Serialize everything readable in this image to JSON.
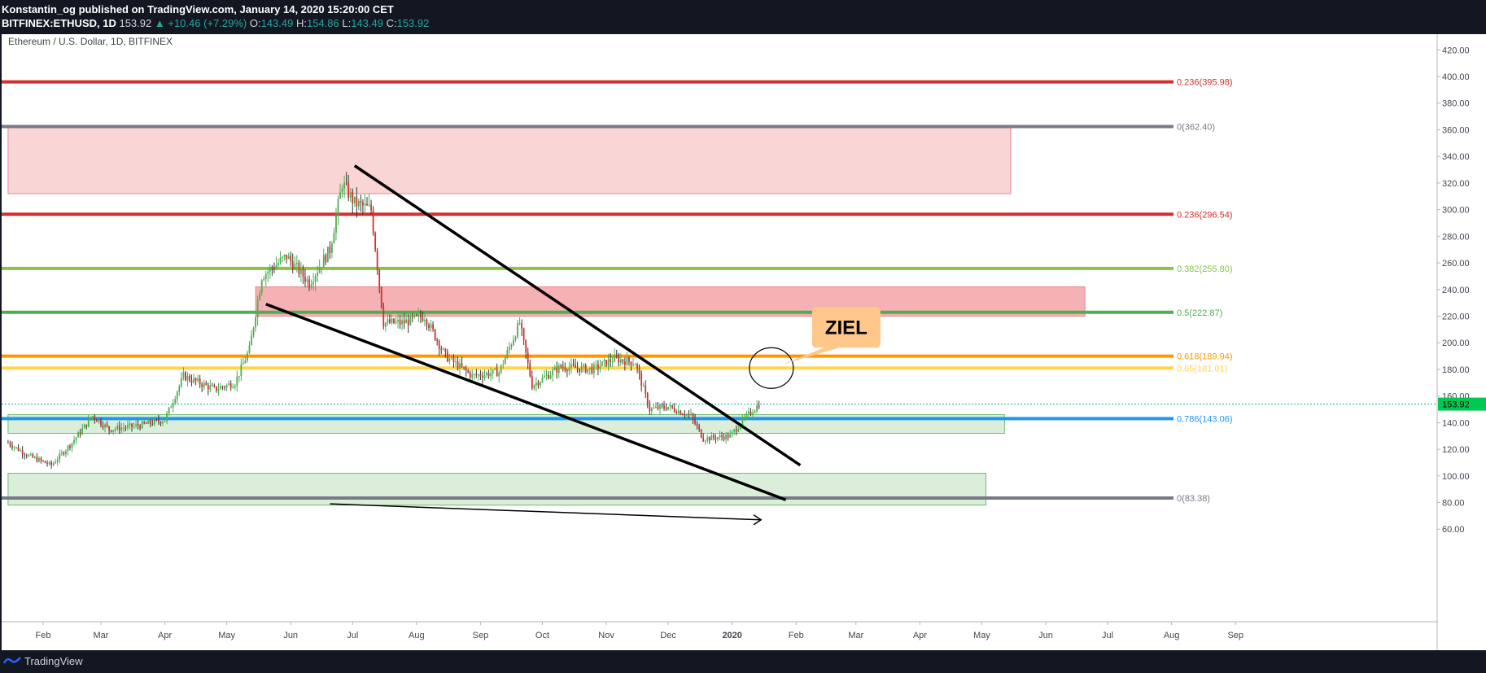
{
  "header": {
    "publisher_line": "Konstantin_og published on TradingView.com, January 14, 2020 15:20:00 CET",
    "symbol": "BITFINEX:ETHUSD, 1D",
    "price": "153.92",
    "change": "+10.46 (+7.29%)",
    "o_label": "O:",
    "o_value": "143.49",
    "h_label": "H:",
    "h_value": "154.86",
    "l_label": "L:",
    "l_value": "143.49",
    "c_label": "C:",
    "c_value": "153.92"
  },
  "footer": {
    "brand": "TradingView"
  },
  "chart_data": {
    "type": "candlestick",
    "title": "Ethereum / U.S. Dollar, 1D, BITFINEX",
    "ylim": [
      50,
      430
    ],
    "y_ticks": [
      "420.00",
      "400.00",
      "380.00",
      "360.00",
      "340.00",
      "320.00",
      "300.00",
      "280.00",
      "260.00",
      "240.00",
      "220.00",
      "200.00",
      "180.00",
      "160.00",
      "140.00",
      "120.00",
      "100.00",
      "80.00",
      "60.00"
    ],
    "x_ticks": [
      "Feb",
      "Mar",
      "Apr",
      "May",
      "Jun",
      "Jul",
      "Aug",
      "Sep",
      "Oct",
      "Nov",
      "Dec",
      "2020",
      "Feb",
      "Mar",
      "Apr",
      "May",
      "Jun",
      "Jul",
      "Aug",
      "Sep"
    ],
    "last_price": "153.92",
    "levels": [
      {
        "label": "0.236(395.98)",
        "value": 395.98,
        "color": "#d32f2f"
      },
      {
        "label": "0(362.40)",
        "value": 362.4,
        "color": "#787b86"
      },
      {
        "label": "0.236(296.54)",
        "value": 296.54,
        "color": "#d32f2f"
      },
      {
        "label": "0.382(255.80)",
        "value": 255.8,
        "color": "#8bc34a"
      },
      {
        "label": "0.5(222.87)",
        "value": 222.87,
        "color": "#4caf50"
      },
      {
        "label": "0.618(189.94)",
        "value": 189.94,
        "color": "#ff9800"
      },
      {
        "label": "0.65(181.01)",
        "value": 181.01,
        "color": "#ffd54f"
      },
      {
        "label": "0.786(143.06)",
        "value": 143.06,
        "color": "#2196f3"
      },
      {
        "label": "0(83.38)",
        "value": 83.38,
        "color": "#787b86"
      }
    ],
    "zones": [
      {
        "from_date": "2019-01-15",
        "to_date": "2020-05-15",
        "low": 312,
        "high": 362.4,
        "color": "#f8d0d0"
      },
      {
        "from_date": "2019-05-15",
        "to_date": "2020-06-20",
        "low": 220,
        "high": 242,
        "color": "#f4a9ab"
      },
      {
        "from_date": "2019-01-15",
        "to_date": "2020-05-12",
        "low": 132,
        "high": 146,
        "color": "#d6ecd6"
      },
      {
        "from_date": "2019-01-15",
        "to_date": "2020-05-03",
        "low": 78,
        "high": 102,
        "color": "#d6ecd6"
      }
    ],
    "trendlines": [
      {
        "from_date": "2019-07-02",
        "from_value": 333,
        "to_date": "2020-02-03",
        "to_value": 108
      },
      {
        "from_date": "2019-05-20",
        "from_value": 229,
        "to_date": "2020-01-27",
        "to_value": 82
      },
      {
        "from_date": "2019-06-20",
        "from_value": 79,
        "to_date": "2020-01-15",
        "to_value": 67
      }
    ],
    "annotation": {
      "text": "ZIEL",
      "date": "2020-01-21",
      "value": 180
    },
    "close_points": [
      [
        "2019-01-15",
        125
      ],
      [
        "2019-01-25",
        115
      ],
      [
        "2019-02-05",
        108
      ],
      [
        "2019-02-15",
        125
      ],
      [
        "2019-02-25",
        145
      ],
      [
        "2019-03-05",
        135
      ],
      [
        "2019-03-20",
        138
      ],
      [
        "2019-04-01",
        142
      ],
      [
        "2019-04-10",
        175
      ],
      [
        "2019-04-25",
        165
      ],
      [
        "2019-05-05",
        170
      ],
      [
        "2019-05-12",
        195
      ],
      [
        "2019-05-18",
        250
      ],
      [
        "2019-05-30",
        265
      ],
      [
        "2019-06-10",
        245
      ],
      [
        "2019-06-20",
        270
      ],
      [
        "2019-06-26",
        320
      ],
      [
        "2019-07-02",
        305
      ],
      [
        "2019-07-10",
        300
      ],
      [
        "2019-07-16",
        215
      ],
      [
        "2019-07-25",
        215
      ],
      [
        "2019-08-05",
        220
      ],
      [
        "2019-08-15",
        190
      ],
      [
        "2019-08-28",
        175
      ],
      [
        "2019-09-10",
        178
      ],
      [
        "2019-09-20",
        215
      ],
      [
        "2019-09-26",
        168
      ],
      [
        "2019-10-10",
        182
      ],
      [
        "2019-10-25",
        180
      ],
      [
        "2019-11-05",
        188
      ],
      [
        "2019-11-15",
        185
      ],
      [
        "2019-11-22",
        150
      ],
      [
        "2019-12-01",
        152
      ],
      [
        "2019-12-12",
        145
      ],
      [
        "2019-12-18",
        128
      ],
      [
        "2019-12-31",
        130
      ],
      [
        "2020-01-07",
        143
      ],
      [
        "2020-01-14",
        153.92
      ]
    ]
  }
}
